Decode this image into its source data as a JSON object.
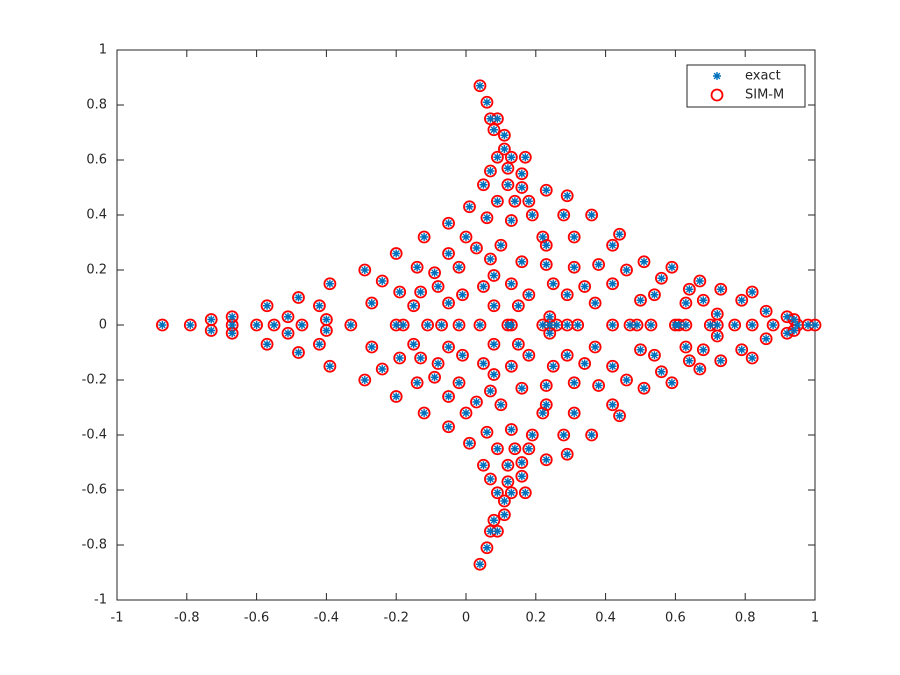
{
  "chart_data": {
    "type": "scatter",
    "xlim": [
      -1,
      1
    ],
    "ylim": [
      -1,
      1
    ],
    "xticks": [
      -1,
      -0.8,
      -0.6,
      -0.4,
      -0.2,
      0,
      0.2,
      0.4,
      0.6,
      0.8,
      1
    ],
    "yticks": [
      -1,
      -0.8,
      -0.6,
      -0.4,
      -0.2,
      0,
      0.2,
      0.4,
      0.6,
      0.8,
      1
    ],
    "legend": "northeast",
    "x": [
      0.04,
      0.06,
      0.07,
      0.09,
      0.08,
      0.11,
      0.09,
      0.11,
      0.13,
      0.17,
      0.07,
      0.12,
      0.16,
      0.05,
      0.12,
      0.16,
      0.23,
      0.01,
      0.09,
      0.14,
      0.18,
      0.29,
      0.06,
      0.13,
      0.19,
      0.28,
      0.36,
      -0.05,
      0,
      -0.12,
      0.03,
      0.1,
      0.22,
      0.23,
      0.31,
      0.44,
      0.42,
      -0.2,
      -0.05,
      0.07,
      0.16,
      0.23,
      0.31,
      0.38,
      0.51,
      -0.29,
      -0.14,
      -0.09,
      -0.02,
      0.08,
      0.46,
      0.59,
      -0.39,
      -0.24,
      -0.08,
      0.05,
      0.13,
      0.25,
      0.34,
      0.42,
      0.56,
      0.67,
      0.82,
      -0.48,
      -0.19,
      -0.13,
      -0.01,
      0.18,
      0.29,
      0.54,
      0.64,
      0.73,
      -0.57,
      -0.42,
      -0.27,
      -0.15,
      -0.05,
      0.08,
      0.15,
      0.37,
      0.5,
      0.63,
      0.68,
      0.79,
      -0.67,
      -0.73,
      -0.51,
      -0.4,
      0.24,
      0.72,
      0.86,
      0.92,
      0.94,
      0.04,
      0.06,
      0.07,
      0.09,
      0.08,
      0.11,
      0.09,
      0.11,
      0.13,
      0.17,
      0.07,
      0.12,
      0.16,
      0.05,
      0.12,
      0.16,
      0.23,
      0.01,
      0.09,
      0.14,
      0.18,
      0.29,
      0.06,
      0.13,
      0.19,
      0.28,
      0.36,
      -0.05,
      0,
      -0.12,
      0.03,
      0.1,
      0.22,
      0.23,
      0.31,
      0.44,
      0.42,
      -0.2,
      -0.05,
      0.07,
      0.16,
      0.23,
      0.31,
      0.38,
      0.51,
      -0.29,
      -0.14,
      -0.09,
      -0.02,
      0.08,
      0.46,
      0.59,
      -0.39,
      -0.24,
      -0.08,
      0.05,
      0.13,
      0.25,
      0.34,
      0.42,
      0.56,
      0.67,
      0.82,
      -0.48,
      -0.19,
      -0.13,
      -0.01,
      0.18,
      0.29,
      0.54,
      0.64,
      0.73,
      -0.57,
      -0.42,
      -0.27,
      -0.15,
      -0.05,
      0.08,
      0.15,
      0.37,
      0.5,
      0.63,
      0.68,
      0.79,
      -0.67,
      -0.73,
      -0.51,
      -0.4,
      0.24,
      0.72,
      0.86,
      0.92,
      0.94,
      -0.87,
      -0.79,
      -0.67,
      -0.6,
      -0.55,
      -0.47,
      -0.33,
      -0.2,
      -0.18,
      -0.11,
      -0.07,
      -0.02,
      0.04,
      0.12,
      0.13,
      0.22,
      0.24,
      0.26,
      0.29,
      0.32,
      0.42,
      0.47,
      0.49,
      0.53,
      0.6,
      0.61,
      0.63,
      0.7,
      0.72,
      0.77,
      0.82,
      0.88,
      0.95,
      0.98,
      1
    ],
    "series": [
      {
        "name": "exact",
        "color": "#0072bd",
        "marker": "asterisk",
        "values": [
          0.87,
          0.81,
          0.75,
          0.75,
          0.71,
          0.69,
          0.61,
          0.64,
          0.61,
          0.61,
          0.56,
          0.57,
          0.55,
          0.51,
          0.51,
          0.5,
          0.49,
          0.43,
          0.45,
          0.45,
          0.45,
          0.47,
          0.39,
          0.38,
          0.4,
          0.4,
          0.4,
          0.37,
          0.32,
          0.32,
          0.28,
          0.29,
          0.32,
          0.29,
          0.32,
          0.33,
          0.29,
          0.26,
          0.26,
          0.24,
          0.23,
          0.22,
          0.21,
          0.22,
          0.23,
          0.2,
          0.21,
          0.19,
          0.21,
          0.18,
          0.2,
          0.21,
          0.15,
          0.16,
          0.14,
          0.14,
          0.15,
          0.15,
          0.14,
          0.15,
          0.17,
          0.16,
          0.12,
          0.1,
          0.12,
          0.12,
          0.11,
          0.11,
          0.11,
          0.11,
          0.13,
          0.13,
          0.07,
          0.07,
          0.08,
          0.07,
          0.08,
          0.07,
          0.07,
          0.08,
          0.09,
          0.08,
          0.09,
          0.09,
          0.03,
          0.02,
          0.03,
          0.02,
          0.03,
          0.04,
          0.05,
          0.03,
          0.02,
          -0.87,
          -0.81,
          -0.75,
          -0.75,
          -0.71,
          -0.69,
          -0.61,
          -0.64,
          -0.61,
          -0.61,
          -0.56,
          -0.57,
          -0.55,
          -0.51,
          -0.51,
          -0.5,
          -0.49,
          -0.43,
          -0.45,
          -0.45,
          -0.45,
          -0.47,
          -0.39,
          -0.38,
          -0.4,
          -0.4,
          -0.4,
          -0.37,
          -0.32,
          -0.32,
          -0.28,
          -0.29,
          -0.32,
          -0.29,
          -0.32,
          -0.33,
          -0.29,
          -0.26,
          -0.26,
          -0.24,
          -0.23,
          -0.22,
          -0.21,
          -0.22,
          -0.23,
          -0.2,
          -0.21,
          -0.19,
          -0.21,
          -0.18,
          -0.2,
          -0.21,
          -0.15,
          -0.16,
          -0.14,
          -0.14,
          -0.15,
          -0.15,
          -0.14,
          -0.15,
          -0.17,
          -0.16,
          -0.12,
          -0.1,
          -0.12,
          -0.12,
          -0.11,
          -0.11,
          -0.11,
          -0.11,
          -0.13,
          -0.13,
          -0.07,
          -0.07,
          -0.08,
          -0.07,
          -0.08,
          -0.07,
          -0.07,
          -0.08,
          -0.09,
          -0.08,
          -0.09,
          -0.09,
          -0.03,
          -0.02,
          -0.03,
          -0.02,
          -0.03,
          -0.04,
          -0.05,
          -0.03,
          -0.02,
          0,
          0,
          0,
          0,
          0,
          0,
          0,
          0,
          0,
          0,
          0,
          0,
          0,
          0,
          0,
          0,
          0,
          0,
          0,
          0,
          0,
          0,
          0,
          0,
          0,
          0,
          0,
          0,
          0,
          0,
          0,
          0,
          0,
          0,
          0
        ]
      },
      {
        "name": "SIM-M",
        "color": "#ff0000",
        "marker": "circle",
        "values": [
          0.87,
          0.81,
          0.75,
          0.75,
          0.71,
          0.69,
          0.61,
          0.64,
          0.61,
          0.61,
          0.56,
          0.57,
          0.55,
          0.51,
          0.51,
          0.5,
          0.49,
          0.43,
          0.45,
          0.45,
          0.45,
          0.47,
          0.39,
          0.38,
          0.4,
          0.4,
          0.4,
          0.37,
          0.32,
          0.32,
          0.28,
          0.29,
          0.32,
          0.29,
          0.32,
          0.33,
          0.29,
          0.26,
          0.26,
          0.24,
          0.23,
          0.22,
          0.21,
          0.22,
          0.23,
          0.2,
          0.21,
          0.19,
          0.21,
          0.18,
          0.2,
          0.21,
          0.15,
          0.16,
          0.14,
          0.14,
          0.15,
          0.15,
          0.14,
          0.15,
          0.17,
          0.16,
          0.12,
          0.1,
          0.12,
          0.12,
          0.11,
          0.11,
          0.11,
          0.11,
          0.13,
          0.13,
          0.07,
          0.07,
          0.08,
          0.07,
          0.08,
          0.07,
          0.07,
          0.08,
          0.09,
          0.08,
          0.09,
          0.09,
          0.03,
          0.02,
          0.03,
          0.02,
          0.03,
          0.04,
          0.05,
          0.03,
          0.02,
          -0.87,
          -0.81,
          -0.75,
          -0.75,
          -0.71,
          -0.69,
          -0.61,
          -0.64,
          -0.61,
          -0.61,
          -0.56,
          -0.57,
          -0.55,
          -0.51,
          -0.51,
          -0.5,
          -0.49,
          -0.43,
          -0.45,
          -0.45,
          -0.45,
          -0.47,
          -0.39,
          -0.38,
          -0.4,
          -0.4,
          -0.4,
          -0.37,
          -0.32,
          -0.32,
          -0.28,
          -0.29,
          -0.32,
          -0.29,
          -0.32,
          -0.33,
          -0.29,
          -0.26,
          -0.26,
          -0.24,
          -0.23,
          -0.22,
          -0.21,
          -0.22,
          -0.23,
          -0.2,
          -0.21,
          -0.19,
          -0.21,
          -0.18,
          -0.2,
          -0.21,
          -0.15,
          -0.16,
          -0.14,
          -0.14,
          -0.15,
          -0.15,
          -0.14,
          -0.15,
          -0.17,
          -0.16,
          -0.12,
          -0.1,
          -0.12,
          -0.12,
          -0.11,
          -0.11,
          -0.11,
          -0.11,
          -0.13,
          -0.13,
          -0.07,
          -0.07,
          -0.08,
          -0.07,
          -0.08,
          -0.07,
          -0.07,
          -0.08,
          -0.09,
          -0.08,
          -0.09,
          -0.09,
          -0.03,
          -0.02,
          -0.03,
          -0.02,
          -0.03,
          -0.04,
          -0.05,
          -0.03,
          -0.02,
          0,
          0,
          0,
          0,
          0,
          0,
          0,
          0,
          0,
          0,
          0,
          0,
          0,
          0,
          0,
          0,
          0,
          0,
          0,
          0,
          0,
          0,
          0,
          0,
          0,
          0,
          0,
          0,
          0,
          0,
          0,
          0,
          0,
          0,
          0
        ]
      }
    ]
  }
}
